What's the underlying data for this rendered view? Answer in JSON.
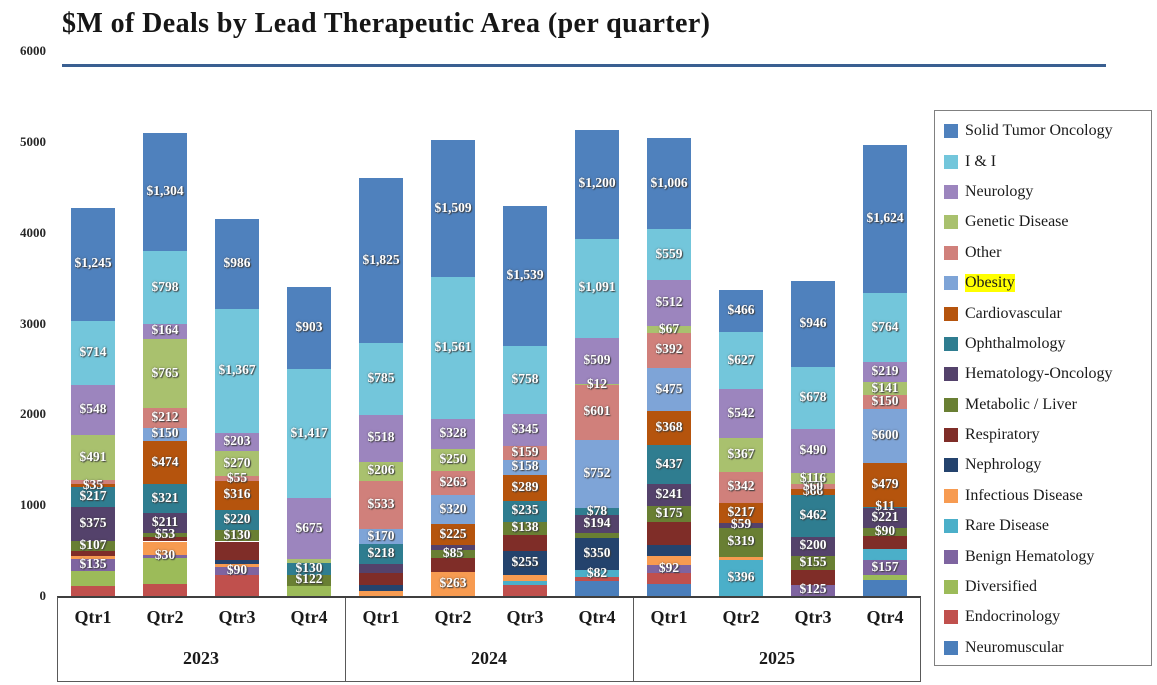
{
  "chart_data": {
    "type": "bar",
    "variant": "stacked-column",
    "title": "$M of Deals by Lead Therapeutic Area (per quarter)",
    "ylabel": "",
    "xlabel": "",
    "ylim": [
      0,
      6000
    ],
    "yticks": [
      "0",
      "1000",
      "2000",
      "3000",
      "4000",
      "5000",
      "6000"
    ],
    "grid": false,
    "legend_position": "right",
    "legend_highlighted_entry": "Obesity",
    "highlight_color": "#FFFF00",
    "title_rule_color": "#3A5F91",
    "series": [
      {
        "name": "Solid Tumor Oncology",
        "color": "#4F81BD"
      },
      {
        "name": "I & I",
        "color": "#73C6DB"
      },
      {
        "name": "Neurology",
        "color": "#9C85BE"
      },
      {
        "name": "Genetic Disease",
        "color": "#A9C16E"
      },
      {
        "name": "Other",
        "color": "#D0807B"
      },
      {
        "name": "Obesity",
        "color": "#7EA4D7"
      },
      {
        "name": "Cardiovascular",
        "color": "#B5540D"
      },
      {
        "name": "Ophthalmology",
        "color": "#2F7D90"
      },
      {
        "name": "Hematology-Oncology",
        "color": "#54426B"
      },
      {
        "name": "Metabolic / Liver",
        "color": "#697F33"
      },
      {
        "name": "Respiratory",
        "color": "#7F2D28"
      },
      {
        "name": "Nephrology",
        "color": "#24436D"
      },
      {
        "name": "Infectious Disease",
        "color": "#F79B51"
      },
      {
        "name": "Rare Disease",
        "color": "#4BAFC9"
      },
      {
        "name": "Benign Hematology",
        "color": "#7E64A0"
      },
      {
        "name": "Diversified",
        "color": "#9CBB59"
      },
      {
        "name": "Endocrinology",
        "color": "#C0504D"
      },
      {
        "name": "Neuromuscular",
        "color": "#4A7EBB"
      }
    ],
    "groups": [
      {
        "year": "2023",
        "quarters": [
          "Qtr1",
          "Qtr2",
          "Qtr3",
          "Qtr4"
        ]
      },
      {
        "year": "2024",
        "quarters": [
          "Qtr1",
          "Qtr2",
          "Qtr3",
          "Qtr4"
        ]
      },
      {
        "year": "2025",
        "quarters": [
          "Qtr1",
          "Qtr2",
          "Qtr3",
          "Qtr4"
        ]
      }
    ],
    "segments_format": [
      "therapeutic_area",
      "value_$M (estimated when unlabeled)",
      "visible_label"
    ],
    "bars": [
      {
        "year": "2023",
        "quarter": "Qtr1",
        "segments": [
          [
            "Solid Tumor Oncology",
            1245,
            "$1,245"
          ],
          [
            "I & I",
            714,
            "$714"
          ],
          [
            "Neurology",
            548,
            "$548"
          ],
          [
            "Genetic Disease",
            491,
            "$491"
          ],
          [
            "Other",
            45,
            ""
          ],
          [
            "Cardiovascular",
            35,
            "$35"
          ],
          [
            "Ophthalmology",
            217,
            "$217"
          ],
          [
            "Hematology-Oncology",
            375,
            "$375"
          ],
          [
            "Metabolic / Liver",
            107,
            "$107"
          ],
          [
            "Respiratory",
            65,
            ""
          ],
          [
            "Infectious Disease",
            25,
            ""
          ],
          [
            "Benign Hematology",
            135,
            "$135"
          ],
          [
            "Diversified",
            160,
            ""
          ],
          [
            "Endocrinology",
            115,
            ""
          ]
        ]
      },
      {
        "year": "2023",
        "quarter": "Qtr2",
        "segments": [
          [
            "Solid Tumor Oncology",
            1304,
            "$1,304"
          ],
          [
            "I & I",
            798,
            "$798"
          ],
          [
            "Neurology",
            164,
            "$164"
          ],
          [
            "Genetic Disease",
            765,
            "$765"
          ],
          [
            "Other",
            212,
            "$212"
          ],
          [
            "Obesity",
            150,
            "$150"
          ],
          [
            "Cardiovascular",
            474,
            "$474"
          ],
          [
            "Ophthalmology",
            321,
            "$321"
          ],
          [
            "Hematology-Oncology",
            211,
            "$211"
          ],
          [
            "Metabolic / Liver",
            53,
            "$53"
          ],
          [
            "Respiratory",
            45,
            ""
          ],
          [
            "Infectious Disease",
            150,
            ""
          ],
          [
            "Benign Hematology",
            30,
            "$30"
          ],
          [
            "Diversified",
            290,
            ""
          ],
          [
            "Endocrinology",
            130,
            ""
          ]
        ]
      },
      {
        "year": "2023",
        "quarter": "Qtr3",
        "segments": [
          [
            "Solid Tumor Oncology",
            986,
            "$986"
          ],
          [
            "I & I",
            1367,
            "$1,367"
          ],
          [
            "Neurology",
            203,
            "$203"
          ],
          [
            "Genetic Disease",
            270,
            "$270"
          ],
          [
            "Other",
            55,
            "$55"
          ],
          [
            "Cardiovascular",
            316,
            "$316"
          ],
          [
            "Ophthalmology",
            220,
            "$220"
          ],
          [
            "Metabolic / Liver",
            130,
            "$130"
          ],
          [
            "Respiratory",
            200,
            ""
          ],
          [
            "Nephrology",
            45,
            ""
          ],
          [
            "Infectious Disease",
            35,
            ""
          ],
          [
            "Benign Hematology",
            90,
            "$90"
          ],
          [
            "Endocrinology",
            230,
            ""
          ]
        ]
      },
      {
        "year": "2023",
        "quarter": "Qtr4",
        "segments": [
          [
            "Solid Tumor Oncology",
            903,
            "$903"
          ],
          [
            "I & I",
            1417,
            "$1,417"
          ],
          [
            "Neurology",
            675,
            "$675"
          ],
          [
            "Genetic Disease",
            40,
            ""
          ],
          [
            "Ophthalmology",
            130,
            "$130"
          ],
          [
            "Metabolic / Liver",
            122,
            "$122"
          ],
          [
            "Diversified",
            110,
            ""
          ]
        ]
      },
      {
        "year": "2024",
        "quarter": "Qtr1",
        "segments": [
          [
            "Solid Tumor Oncology",
            1825,
            "$1,825"
          ],
          [
            "I & I",
            785,
            "$785"
          ],
          [
            "Neurology",
            518,
            "$518"
          ],
          [
            "Genetic Disease",
            206,
            "$206"
          ],
          [
            "Other",
            533,
            "$533"
          ],
          [
            "Obesity",
            170,
            "$170"
          ],
          [
            "Ophthalmology",
            218,
            "$218"
          ],
          [
            "Hematology-Oncology",
            95,
            ""
          ],
          [
            "Respiratory",
            130,
            ""
          ],
          [
            "Nephrology",
            65,
            ""
          ],
          [
            "Infectious Disease",
            60,
            ""
          ]
        ]
      },
      {
        "year": "2024",
        "quarter": "Qtr2",
        "segments": [
          [
            "Solid Tumor Oncology",
            1509,
            "$1,509"
          ],
          [
            "I & I",
            1561,
            "$1,561"
          ],
          [
            "Neurology",
            328,
            "$328"
          ],
          [
            "Genetic Disease",
            250,
            "$250"
          ],
          [
            "Other",
            263,
            "$263"
          ],
          [
            "Obesity",
            320,
            "$320"
          ],
          [
            "Cardiovascular",
            225,
            "$225"
          ],
          [
            "Hematology-Oncology",
            55,
            ""
          ],
          [
            "Metabolic / Liver",
            85,
            "$85"
          ],
          [
            "Respiratory",
            160,
            ""
          ],
          [
            "Infectious Disease",
            263,
            "$263"
          ]
        ]
      },
      {
        "year": "2024",
        "quarter": "Qtr3",
        "segments": [
          [
            "Solid Tumor Oncology",
            1539,
            "$1,539"
          ],
          [
            "I & I",
            758,
            "$758"
          ],
          [
            "Neurology",
            345,
            "$345"
          ],
          [
            "Other",
            159,
            "$159"
          ],
          [
            "Obesity",
            158,
            "$158"
          ],
          [
            "Cardiovascular",
            289,
            "$289"
          ],
          [
            "Ophthalmology",
            235,
            "$235"
          ],
          [
            "Metabolic / Liver",
            138,
            "$138"
          ],
          [
            "Respiratory",
            185,
            ""
          ],
          [
            "Nephrology",
            255,
            "$255"
          ],
          [
            "Infectious Disease",
            75,
            ""
          ],
          [
            "Rare Disease",
            40,
            ""
          ],
          [
            "Endocrinology",
            120,
            ""
          ]
        ]
      },
      {
        "year": "2024",
        "quarter": "Qtr4",
        "segments": [
          [
            "Solid Tumor Oncology",
            1200,
            "$1,200"
          ],
          [
            "I & I",
            1091,
            "$1,091"
          ],
          [
            "Neurology",
            509,
            "$509"
          ],
          [
            "Genetic Disease",
            12,
            "$12"
          ],
          [
            "Other",
            601,
            "$601"
          ],
          [
            "Obesity",
            752,
            "$752"
          ],
          [
            "Ophthalmology",
            78,
            "$78"
          ],
          [
            "Hematology-Oncology",
            194,
            "$194"
          ],
          [
            "Metabolic / Liver",
            60,
            ""
          ],
          [
            "Nephrology",
            350,
            "$350"
          ],
          [
            "Rare Disease",
            82,
            "$82"
          ],
          [
            "Endocrinology",
            35,
            ""
          ],
          [
            "Neuromuscular",
            170,
            ""
          ]
        ]
      },
      {
        "year": "2025",
        "quarter": "Qtr1",
        "segments": [
          [
            "Solid Tumor Oncology",
            1006,
            "$1,006"
          ],
          [
            "I & I",
            559,
            "$559"
          ],
          [
            "Neurology",
            512,
            "$512"
          ],
          [
            "Genetic Disease",
            67,
            "$67"
          ],
          [
            "Other",
            392,
            "$392"
          ],
          [
            "Obesity",
            475,
            "$475"
          ],
          [
            "Cardiovascular",
            368,
            "$368"
          ],
          [
            "Ophthalmology",
            437,
            "$437"
          ],
          [
            "Hematology-Oncology",
            241,
            "$241"
          ],
          [
            "Metabolic / Liver",
            175,
            "$175"
          ],
          [
            "Respiratory",
            250,
            ""
          ],
          [
            "Nephrology",
            120,
            ""
          ],
          [
            "Infectious Disease",
            100,
            ""
          ],
          [
            "Benign Hematology",
            92,
            "$92"
          ],
          [
            "Endocrinology",
            120,
            ""
          ],
          [
            "Neuromuscular",
            130,
            ""
          ]
        ]
      },
      {
        "year": "2025",
        "quarter": "Qtr2",
        "segments": [
          [
            "Solid Tumor Oncology",
            466,
            "$466"
          ],
          [
            "I & I",
            627,
            "$627"
          ],
          [
            "Neurology",
            542,
            "$542"
          ],
          [
            "Genetic Disease",
            367,
            "$367"
          ],
          [
            "Other",
            342,
            "$342"
          ],
          [
            "Cardiovascular",
            217,
            "$217"
          ],
          [
            "Hematology-Oncology",
            59,
            "$59"
          ],
          [
            "Metabolic / Liver",
            319,
            "$319"
          ],
          [
            "Infectious Disease",
            35,
            ""
          ],
          [
            "Rare Disease",
            396,
            "$396"
          ]
        ]
      },
      {
        "year": "2025",
        "quarter": "Qtr3",
        "segments": [
          [
            "Solid Tumor Oncology",
            946,
            "$946"
          ],
          [
            "I & I",
            678,
            "$678"
          ],
          [
            "Neurology",
            490,
            "$490"
          ],
          [
            "Genetic Disease",
            116,
            "$116"
          ],
          [
            "Other",
            60,
            "$60"
          ],
          [
            "Cardiovascular",
            66,
            "$66"
          ],
          [
            "Ophthalmology",
            462,
            "$462"
          ],
          [
            "Hematology-Oncology",
            200,
            "$200"
          ],
          [
            "Metabolic / Liver",
            155,
            "$155"
          ],
          [
            "Respiratory",
            165,
            ""
          ],
          [
            "Benign Hematology",
            125,
            "$125"
          ]
        ]
      },
      {
        "year": "2025",
        "quarter": "Qtr4",
        "segments": [
          [
            "Solid Tumor Oncology",
            1624,
            "$1,624"
          ],
          [
            "I & I",
            764,
            "$764"
          ],
          [
            "Neurology",
            219,
            "$219"
          ],
          [
            "Genetic Disease",
            141,
            "$141"
          ],
          [
            "Other",
            150,
            "$150"
          ],
          [
            "Obesity",
            600,
            "$600"
          ],
          [
            "Cardiovascular",
            479,
            "$479"
          ],
          [
            "Ophthalmology",
            11,
            "$11"
          ],
          [
            "Hematology-Oncology",
            221,
            "$221"
          ],
          [
            "Metabolic / Liver",
            90,
            "$90"
          ],
          [
            "Respiratory",
            150,
            ""
          ],
          [
            "Rare Disease",
            120,
            ""
          ],
          [
            "Benign Hematology",
            157,
            "$157"
          ],
          [
            "Diversified",
            55,
            ""
          ],
          [
            "Neuromuscular",
            180,
            ""
          ]
        ]
      }
    ]
  }
}
